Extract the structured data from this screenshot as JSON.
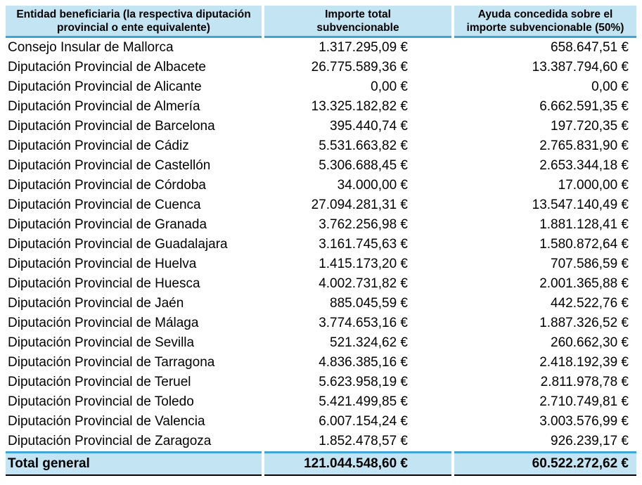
{
  "table": {
    "header": {
      "col1": "Entidad beneficiaria (la respectiva diputación provincial o ente equivalente)",
      "col2": "Importe total subvencionable",
      "col3": "Ayuda concedida sobre el importe subvencionable (50%)"
    },
    "rows": [
      {
        "entity": "Consejo Insular de Mallorca",
        "importe": "1.317.295,09 €",
        "ayuda": "658.647,51 €"
      },
      {
        "entity": "Diputación Provincial de Albacete",
        "importe": "26.775.589,36 €",
        "ayuda": "13.387.794,60 €"
      },
      {
        "entity": "Diputación Provincial de Alicante",
        "importe": "0,00 €",
        "ayuda": "0,00 €"
      },
      {
        "entity": "Diputación Provincial de Almería",
        "importe": "13.325.182,82 €",
        "ayuda": "6.662.591,35 €"
      },
      {
        "entity": "Diputación Provincial de Barcelona",
        "importe": "395.440,74 €",
        "ayuda": "197.720,35 €"
      },
      {
        "entity": "Diputación Provincial de Cádiz",
        "importe": "5.531.663,82 €",
        "ayuda": "2.765.831,90 €"
      },
      {
        "entity": "Diputación Provincial de Castellón",
        "importe": "5.306.688,45 €",
        "ayuda": "2.653.344,18 €"
      },
      {
        "entity": "Diputación Provincial de Córdoba",
        "importe": "34.000,00 €",
        "ayuda": "17.000,00 €"
      },
      {
        "entity": "Diputación Provincial de Cuenca",
        "importe": "27.094.281,31 €",
        "ayuda": "13.547.140,49 €"
      },
      {
        "entity": "Diputación Provincial de Granada",
        "importe": "3.762.256,98 €",
        "ayuda": "1.881.128,41 €"
      },
      {
        "entity": "Diputación Provincial de Guadalajara",
        "importe": "3.161.745,63 €",
        "ayuda": "1.580.872,64 €"
      },
      {
        "entity": "Diputación Provincial de Huelva",
        "importe": "1.415.173,20 €",
        "ayuda": "707.586,59 €"
      },
      {
        "entity": "Diputación Provincial de Huesca",
        "importe": "4.002.731,82 €",
        "ayuda": "2.001.365,88 €"
      },
      {
        "entity": "Diputación Provincial de Jaén",
        "importe": "885.045,59 €",
        "ayuda": "442.522,76 €"
      },
      {
        "entity": "Diputación Provincial de Málaga",
        "importe": "3.774.653,16 €",
        "ayuda": "1.887.326,52 €"
      },
      {
        "entity": "Diputación Provincial de Sevilla",
        "importe": "521.324,62 €",
        "ayuda": "260.662,30 €"
      },
      {
        "entity": "Diputación Provincial de Tarragona",
        "importe": "4.836.385,16 €",
        "ayuda": "2.418.192,39 €"
      },
      {
        "entity": "Diputación Provincial de Teruel",
        "importe": "5.623.958,19 €",
        "ayuda": "2.811.978,78 €"
      },
      {
        "entity": "Diputación Provincial de Toledo",
        "importe": "5.421.499,85 €",
        "ayuda": "2.710.749,81 €"
      },
      {
        "entity": "Diputación Provincial de Valencia",
        "importe": "6.007.154,24 €",
        "ayuda": "3.003.576,99 €"
      },
      {
        "entity": "Diputación Provincial de Zaragoza",
        "importe": "1.852.478,57 €",
        "ayuda": "926.239,17 €"
      }
    ],
    "total": {
      "label": "Total general",
      "importe": "121.044.548,60 €",
      "ayuda": "60.522.272,62 €"
    },
    "colors": {
      "header_bg": "#c2e4f3",
      "rule_blue": "#41a3d8",
      "rule_black": "#000000",
      "text": "#000000",
      "page_bg": "#ffffff"
    }
  }
}
